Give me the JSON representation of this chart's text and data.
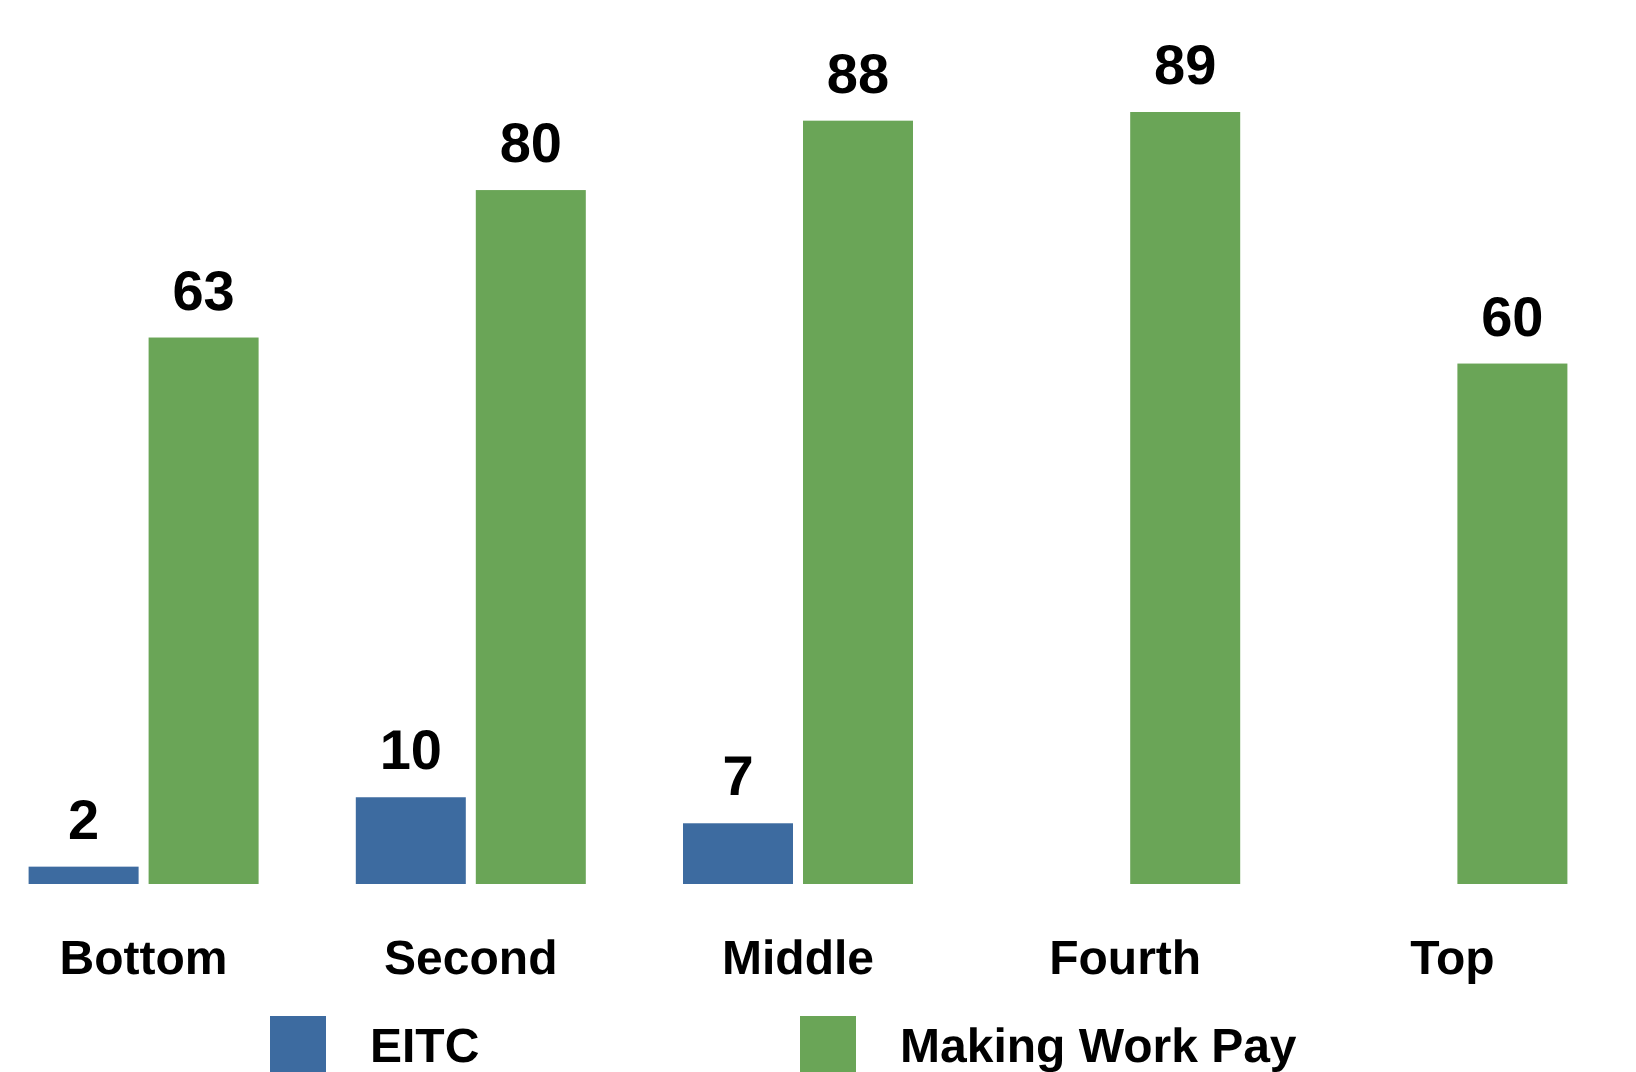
{
  "chart_data": {
    "type": "bar",
    "categories": [
      "Bottom",
      "Second",
      "Middle",
      "Fourth",
      "Top"
    ],
    "series": [
      {
        "name": "EITC",
        "color": "#3d6ba0",
        "values": [
          2,
          10,
          7,
          null,
          null
        ]
      },
      {
        "name": "Making Work Pay",
        "color": "#6aa557",
        "values": [
          63,
          80,
          88,
          89,
          60
        ]
      }
    ],
    "data_labels": true,
    "legend": "bottom",
    "grid": false
  }
}
